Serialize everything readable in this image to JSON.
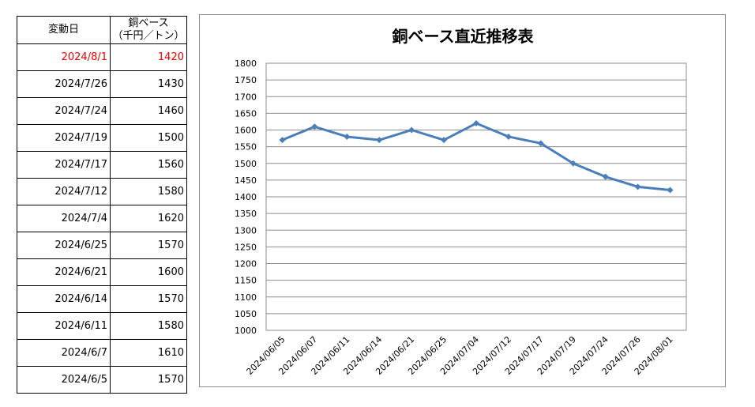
{
  "table": {
    "header_date": "変動日",
    "header_price_line1": "銅ベース",
    "header_price_line2": "（千円／トン）",
    "rows": [
      {
        "date": "2024/8/1",
        "price": "1420"
      },
      {
        "date": "2024/7/26",
        "price": "1430"
      },
      {
        "date": "2024/7/24",
        "price": "1460"
      },
      {
        "date": "2024/7/19",
        "price": "1500"
      },
      {
        "date": "2024/7/17",
        "price": "1560"
      },
      {
        "date": "2024/7/12",
        "price": "1580"
      },
      {
        "date": "2024/7/4",
        "price": "1620"
      },
      {
        "date": "2024/6/25",
        "price": "1570"
      },
      {
        "date": "2024/6/21",
        "price": "1600"
      },
      {
        "date": "2024/6/14",
        "price": "1570"
      },
      {
        "date": "2024/6/11",
        "price": "1580"
      },
      {
        "date": "2024/6/7",
        "price": "1610"
      },
      {
        "date": "2024/6/5",
        "price": "1570"
      }
    ],
    "highlight_color": "#e00000"
  },
  "chart_data": {
    "type": "line",
    "title": "銅ベース直近推移表",
    "categories": [
      "2024/06/05",
      "2024/06/07",
      "2024/06/11",
      "2024/06/14",
      "2024/06/21",
      "2024/06/25",
      "2024/07/04",
      "2024/07/12",
      "2024/07/17",
      "2024/07/19",
      "2024/07/24",
      "2024/07/26",
      "2024/08/01"
    ],
    "series": [
      {
        "values": [
          1570,
          1610,
          1580,
          1570,
          1600,
          1570,
          1620,
          1580,
          1560,
          1500,
          1460,
          1430,
          1420
        ]
      }
    ],
    "ylim": [
      1000,
      1800
    ],
    "ystep": 50,
    "grid": true,
    "line_color": "#4a7ebb",
    "xlabel": "",
    "ylabel": ""
  }
}
